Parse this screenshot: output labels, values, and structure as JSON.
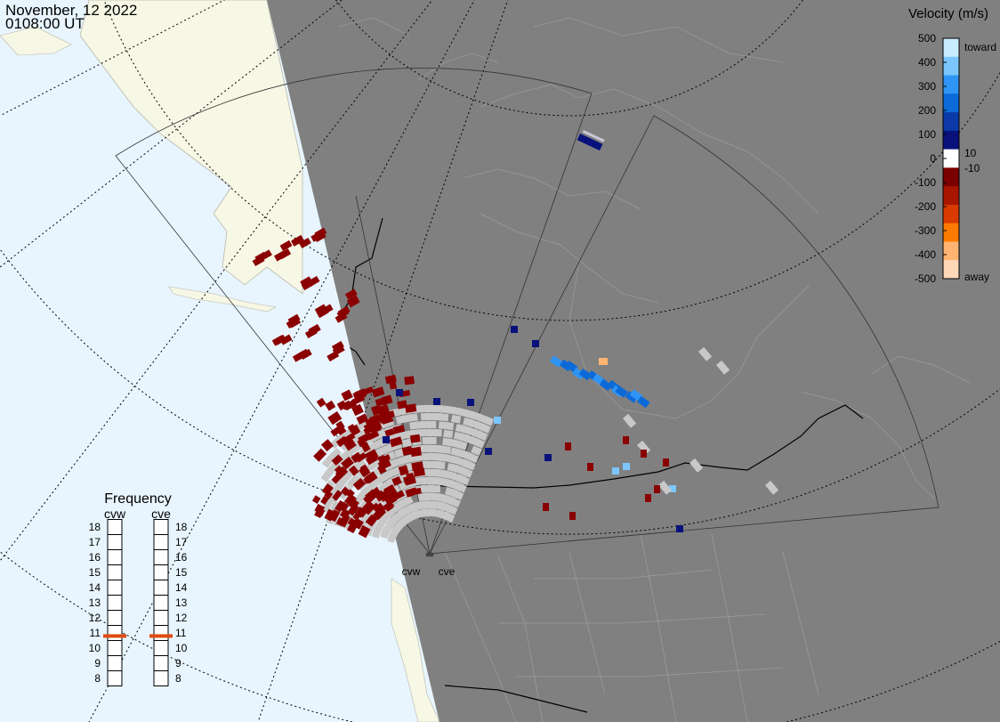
{
  "header": {
    "date": "November, 12 2022",
    "time": "0108:00 UT"
  },
  "colorbar": {
    "title": "Velocity (m/s)",
    "ticks": [
      "500",
      "400",
      "300",
      "200",
      "100",
      "0",
      "-100",
      "-200",
      "-300",
      "-400",
      "-500"
    ],
    "labels": {
      "toward": "toward",
      "away": "away",
      "pos_small": "10",
      "neg_small": "-10"
    },
    "colors": [
      "#c8ecff",
      "#7cc6ff",
      "#2f95f5",
      "#0b6ad8",
      "#0b3aa8",
      "#08127a",
      "#ffffff",
      "#7a0000",
      "#a81600",
      "#d83a00",
      "#ff7a00",
      "#ffb472",
      "#ffd8b8"
    ]
  },
  "frequency": {
    "title": "Frequency",
    "radars": [
      {
        "label": "cvw",
        "current_mhz": 10.8
      },
      {
        "label": "cve",
        "current_mhz": 10.8
      }
    ],
    "scale": [
      "18",
      "17",
      "16",
      "15",
      "14",
      "13",
      "12",
      "11",
      "10",
      "9",
      "8"
    ],
    "marker_color": "#e04a10"
  },
  "stations": [
    "cvw",
    "cve"
  ],
  "map_colors": {
    "ocean": "#e8f5ff",
    "land": "#f7f7e6",
    "night": "#808080",
    "ground_scatter": "#c8c8c8"
  }
}
